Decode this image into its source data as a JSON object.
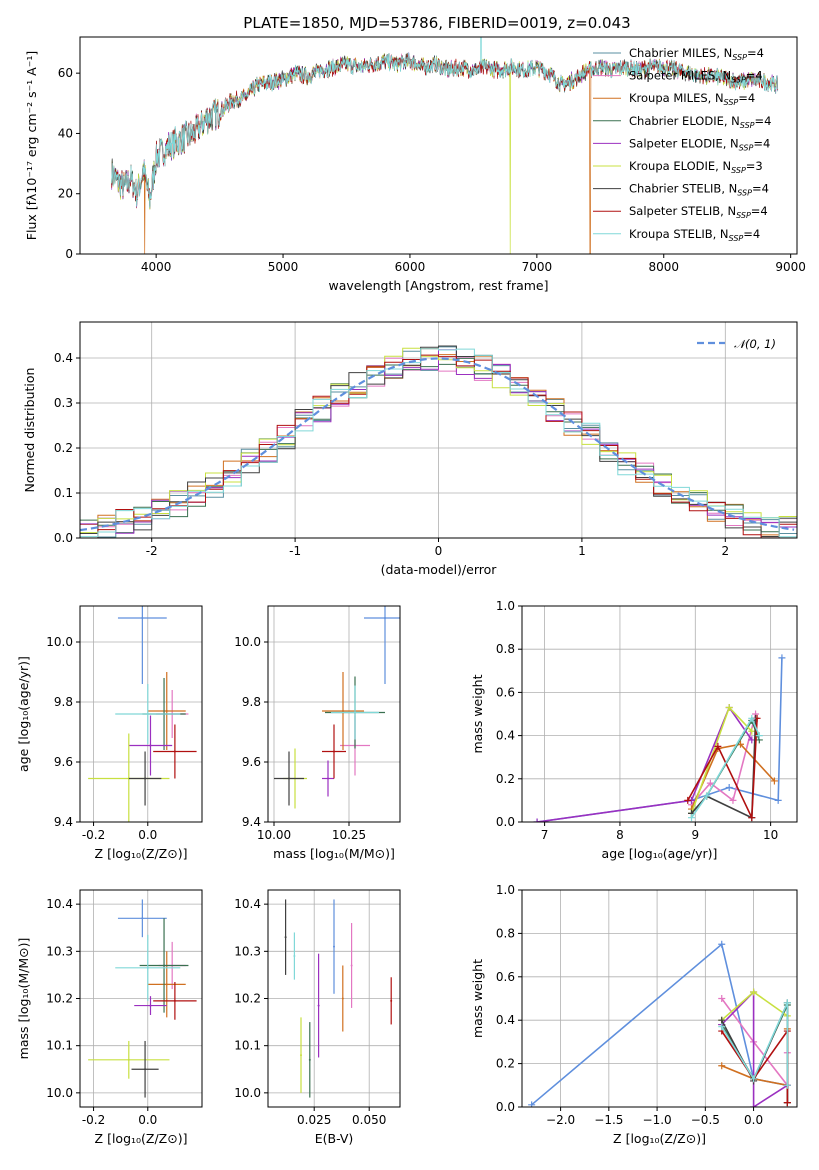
{
  "figure": {
    "title": "PLATE=1850, MJD=53786, FIBERID=0019, z=0.043"
  },
  "chart_data": [
    {
      "type": "line",
      "panel": "spectrum",
      "xlabel": "wavelength [Angstrom, rest frame]",
      "ylabel": "Flux [fλ10⁻¹⁷ erg cm⁻² s⁻¹ A⁻¹]",
      "xlim": [
        3400,
        9050
      ],
      "ylim": [
        0,
        72
      ],
      "xticks": [
        "4000",
        "5000",
        "6000",
        "7000",
        "8000",
        "9000"
      ],
      "yticks": [
        "0",
        "20",
        "40",
        "60"
      ],
      "grid": false,
      "legend_position": "top-right",
      "continuum": {
        "x": [
          3650,
          3700,
          3750,
          3800,
          3850,
          3900,
          3950,
          4000,
          4100,
          4200,
          4300,
          4400,
          4500,
          4600,
          4700,
          4800,
          4900,
          5000,
          5100,
          5200,
          5300,
          5400,
          5500,
          5600,
          5700,
          5800,
          5900,
          6000,
          6100,
          6200,
          6300,
          6400,
          6500,
          6600,
          6700,
          6800,
          6900,
          7000,
          7100,
          7200,
          7300,
          7400,
          7500,
          7600,
          7700,
          7800,
          7900,
          8000,
          8100,
          8200,
          8300,
          8400,
          8500,
          8600,
          8700,
          8800,
          8900
        ],
        "y": [
          27,
          24,
          22,
          25,
          20,
          28,
          18,
          32,
          36,
          38,
          40,
          45,
          47,
          51,
          52,
          56,
          57,
          58,
          60,
          59,
          61,
          62,
          63,
          62,
          63,
          64,
          63,
          64,
          62,
          63,
          61,
          62,
          61,
          62,
          61,
          62,
          61,
          62,
          60,
          56,
          58,
          61,
          62,
          61,
          62,
          61,
          62,
          62,
          61,
          60,
          59,
          59,
          58,
          57,
          58,
          57,
          56
        ]
      },
      "series": [
        {
          "name": "Chabrier MILES, N_SSP=4",
          "label_main": "Chabrier MILES, N",
          "label_sub": "SSP",
          "label_tail": "=4",
          "color": "#5a8fa0"
        },
        {
          "name": "Salpeter MILES, N_SSP=4",
          "label_main": "Salpeter MILES, N",
          "label_sub": "SSP",
          "label_tail": "=4",
          "color": "#e377c2"
        },
        {
          "name": "Kroupa MILES, N_SSP=4",
          "label_main": "Kroupa MILES, N",
          "label_sub": "SSP",
          "label_tail": "=4",
          "color": "#d07020"
        },
        {
          "name": "Chabrier ELODIE, N_SSP=4",
          "label_main": "Chabrier ELODIE, N",
          "label_sub": "SSP",
          "label_tail": "=4",
          "color": "#3a7050"
        },
        {
          "name": "Salpeter ELODIE, N_SSP=4",
          "label_main": "Salpeter ELODIE, N",
          "label_sub": "SSP",
          "label_tail": "=4",
          "color": "#9b30c0"
        },
        {
          "name": "Kroupa ELODIE, N_SSP=3",
          "label_main": "Kroupa ELODIE, N",
          "label_sub": "SSP",
          "label_tail": "=3",
          "color": "#c8e040"
        },
        {
          "name": "Chabrier STELIB, N_SSP=4",
          "label_main": "Chabrier STELIB, N",
          "label_sub": "SSP",
          "label_tail": "=4",
          "color": "#404040"
        },
        {
          "name": "Salpeter STELIB, N_SSP=4",
          "label_main": "Salpeter STELIB, N",
          "label_sub": "SSP",
          "label_tail": "=4",
          "color": "#b01010"
        },
        {
          "name": "Kroupa STELIB, N_SSP=4",
          "label_main": "Kroupa STELIB, N",
          "label_sub": "SSP",
          "label_tail": "=4",
          "color": "#80d8d8"
        }
      ]
    },
    {
      "type": "line",
      "panel": "residuals",
      "xlabel": "(data-model)/error",
      "ylabel": "Normed distribution",
      "xlim": [
        -2.5,
        2.5
      ],
      "ylim": [
        0,
        0.48
      ],
      "xticks": [
        -2,
        -1,
        0,
        1,
        2
      ],
      "yticks": [
        0.0,
        0.1,
        0.2,
        0.3,
        0.4
      ],
      "grid": true,
      "legend_position": "top-right",
      "reference": {
        "name": "𝒩(0, 1)",
        "color": "#5f8fdd",
        "mu": 0,
        "sigma": 1
      }
    },
    {
      "type": "scatter",
      "panel": "age-vs-Z",
      "xlabel": "Z [log₁₀(Z/Z⊙)]",
      "ylabel": "age  [log₁₀(age/yr)]",
      "xlim": [
        -0.25,
        0.2
      ],
      "ylim": [
        9.4,
        10.12
      ],
      "xticks": [
        -0.2,
        0.0
      ],
      "yticks": [
        9.4,
        9.6,
        9.8,
        10.0
      ],
      "grid": true,
      "points": [
        {
          "x": -0.02,
          "xerr": 0.09,
          "y": 10.08,
          "yerr": 0.22,
          "color": "#5f8fdd"
        },
        {
          "x": 0.09,
          "xerr": 0.06,
          "y": 9.76,
          "yerr": 0.08,
          "color": "#e377c2"
        },
        {
          "x": 0.07,
          "xerr": 0.07,
          "y": 9.77,
          "yerr": 0.13,
          "color": "#d07020"
        },
        {
          "x": 0.06,
          "xerr": 0.08,
          "y": 9.76,
          "yerr": 0.12,
          "color": "#3a7050"
        },
        {
          "x": 0.01,
          "xerr": 0.08,
          "y": 9.655,
          "yerr": 0.1,
          "color": "#9b30c0"
        },
        {
          "x": -0.07,
          "xerr": 0.15,
          "y": 9.545,
          "yerr": 0.15,
          "color": "#c8e040"
        },
        {
          "x": -0.01,
          "xerr": 0.06,
          "y": 9.545,
          "yerr": 0.09,
          "color": "#404040"
        },
        {
          "x": 0.1,
          "xerr": 0.08,
          "y": 9.635,
          "yerr": 0.09,
          "color": "#b01010"
        },
        {
          "x": 0.0,
          "xerr": 0.12,
          "y": 9.76,
          "yerr": 0.1,
          "color": "#80d8d8"
        }
      ]
    },
    {
      "type": "scatter",
      "panel": "age-vs-mass",
      "xlabel": "mass [log₁₀(M/M⊙)]",
      "ylabel": "",
      "xlim": [
        9.98,
        10.42
      ],
      "ylim": [
        9.4,
        10.12
      ],
      "xticks": [
        10.0,
        10.25
      ],
      "yticks": [
        9.4,
        9.6,
        9.8,
        10.0
      ],
      "grid": true,
      "points": [
        {
          "x": 10.37,
          "xerr": 0.07,
          "y": 10.08,
          "yerr": 0.22,
          "color": "#5f8fdd"
        },
        {
          "x": 10.27,
          "xerr": 0.05,
          "y": 9.655,
          "yerr": 0.1,
          "color": "#e377c2"
        },
        {
          "x": 10.23,
          "xerr": 0.07,
          "y": 9.77,
          "yerr": 0.13,
          "color": "#d07020"
        },
        {
          "x": 10.27,
          "xerr": 0.1,
          "y": 9.765,
          "yerr": 0.12,
          "color": "#3a7050"
        },
        {
          "x": 10.18,
          "xerr": 0.02,
          "y": 9.545,
          "yerr": 0.06,
          "color": "#9b30c0"
        },
        {
          "x": 10.07,
          "xerr": 0.04,
          "y": 9.545,
          "yerr": 0.1,
          "color": "#c8e040"
        },
        {
          "x": 10.05,
          "xerr": 0.05,
          "y": 9.545,
          "yerr": 0.09,
          "color": "#404040"
        },
        {
          "x": 10.2,
          "xerr": 0.04,
          "y": 9.635,
          "yerr": 0.09,
          "color": "#b01010"
        },
        {
          "x": 10.27,
          "xerr": 0.08,
          "y": 9.765,
          "yerr": 0.09,
          "color": "#80d8d8"
        }
      ]
    },
    {
      "type": "line",
      "panel": "weight-vs-age",
      "xlabel": "age  [log₁₀(age/yr)]",
      "ylabel": "mass weight",
      "xlim": [
        6.7,
        10.35
      ],
      "ylim": [
        0,
        1.0
      ],
      "xticks": [
        7,
        8,
        9,
        10
      ],
      "yticks": [
        0.0,
        0.2,
        0.4,
        0.6,
        0.8,
        1.0
      ],
      "grid": true,
      "series": [
        {
          "color": "#5f8fdd",
          "x": [
            6.9,
            8.95,
            9.45,
            10.1,
            10.15
          ],
          "y": [
            0.0,
            0.1,
            0.16,
            0.1,
            0.76
          ]
        },
        {
          "color": "#e377c2",
          "x": [
            8.95,
            9.2,
            9.5,
            9.8
          ],
          "y": [
            0.08,
            0.18,
            0.1,
            0.5
          ]
        },
        {
          "color": "#d07020",
          "x": [
            8.95,
            9.3,
            9.6,
            10.05
          ],
          "y": [
            0.06,
            0.34,
            0.36,
            0.19
          ]
        },
        {
          "color": "#3a7050",
          "x": [
            8.95,
            9.15,
            9.75,
            9.85
          ],
          "y": [
            0.04,
            0.12,
            0.47,
            0.38
          ]
        },
        {
          "color": "#9b30c0",
          "x": [
            6.9,
            8.95,
            9.45,
            9.75
          ],
          "y": [
            0.0,
            0.1,
            0.53,
            0.38
          ]
        },
        {
          "color": "#c8e040",
          "x": [
            8.95,
            9.45,
            9.75
          ],
          "y": [
            0.04,
            0.53,
            0.42
          ]
        },
        {
          "color": "#404040",
          "x": [
            8.95,
            9.15,
            9.75,
            9.8
          ],
          "y": [
            0.04,
            0.12,
            0.02,
            0.48
          ]
        },
        {
          "color": "#b01010",
          "x": [
            8.9,
            9.3,
            9.75,
            9.82
          ],
          "y": [
            0.1,
            0.35,
            0.02,
            0.48
          ]
        },
        {
          "color": "#80d8d8",
          "x": [
            8.95,
            9.15,
            9.75,
            9.85
          ],
          "y": [
            0.02,
            0.12,
            0.48,
            0.4
          ]
        }
      ]
    },
    {
      "type": "scatter",
      "panel": "mass-vs-Z",
      "xlabel": "Z [log₁₀(Z/Z⊙)]",
      "ylabel": "mass [log₁₀(M/M⊙)]",
      "xlim": [
        -0.25,
        0.2
      ],
      "ylim": [
        9.97,
        10.43
      ],
      "xticks": [
        -0.2,
        0.0
      ],
      "yticks": [
        10.0,
        10.1,
        10.2,
        10.3,
        10.4
      ],
      "grid": true,
      "points": [
        {
          "x": -0.02,
          "xerr": 0.09,
          "y": 10.37,
          "yerr": 0.04,
          "color": "#5f8fdd"
        },
        {
          "x": 0.09,
          "xerr": 0.05,
          "y": 10.27,
          "yerr": 0.05,
          "color": "#e377c2"
        },
        {
          "x": 0.07,
          "xerr": 0.07,
          "y": 10.23,
          "yerr": 0.07,
          "color": "#d07020"
        },
        {
          "x": 0.06,
          "xerr": 0.09,
          "y": 10.27,
          "yerr": 0.1,
          "color": "#3a7050"
        },
        {
          "x": 0.01,
          "xerr": 0.06,
          "y": 10.185,
          "yerr": 0.02,
          "color": "#9b30c0"
        },
        {
          "x": -0.07,
          "xerr": 0.15,
          "y": 10.07,
          "yerr": 0.04,
          "color": "#c8e040"
        },
        {
          "x": -0.01,
          "xerr": 0.05,
          "y": 10.05,
          "yerr": 0.06,
          "color": "#404040"
        },
        {
          "x": 0.1,
          "xerr": 0.08,
          "y": 10.195,
          "yerr": 0.04,
          "color": "#b01010"
        },
        {
          "x": 0.0,
          "xerr": 0.12,
          "y": 10.265,
          "yerr": 0.07,
          "color": "#80d8d8"
        }
      ]
    },
    {
      "type": "scatter",
      "panel": "mass-vs-EBV",
      "xlabel": "E(B-V)",
      "ylabel": "",
      "xlim": [
        0.004,
        0.064
      ],
      "ylim": [
        9.97,
        10.43
      ],
      "xticks": [
        0.025,
        0.05
      ],
      "yticks": [
        10.0,
        10.1,
        10.2,
        10.3,
        10.4
      ],
      "grid": true,
      "points": [
        {
          "x": 0.034,
          "xerr": 0,
          "y": 10.31,
          "yerr": 0.1,
          "color": "#5f8fdd"
        },
        {
          "x": 0.042,
          "xerr": 0,
          "y": 10.27,
          "yerr": 0.09,
          "color": "#e377c2"
        },
        {
          "x": 0.038,
          "xerr": 0,
          "y": 10.2,
          "yerr": 0.07,
          "color": "#d07020"
        },
        {
          "x": 0.023,
          "xerr": 0,
          "y": 10.07,
          "yerr": 0.08,
          "color": "#3a7050"
        },
        {
          "x": 0.027,
          "xerr": 0,
          "y": 10.185,
          "yerr": 0.11,
          "color": "#9b30c0"
        },
        {
          "x": 0.019,
          "xerr": 0,
          "y": 10.08,
          "yerr": 0.08,
          "color": "#c8e040"
        },
        {
          "x": 0.012,
          "xerr": 0,
          "y": 10.33,
          "yerr": 0.08,
          "color": "#404040"
        },
        {
          "x": 0.06,
          "xerr": 0,
          "y": 10.195,
          "yerr": 0.05,
          "color": "#b01010"
        },
        {
          "x": 0.016,
          "xerr": 0,
          "y": 10.29,
          "yerr": 0.05,
          "color": "#80d8d8"
        }
      ]
    },
    {
      "type": "line",
      "panel": "weight-vs-Z",
      "xlabel": "Z [log₁₀(Z/Z⊙)]",
      "ylabel": "mass weight",
      "xlim": [
        -2.4,
        0.45
      ],
      "ylim": [
        0,
        1.0
      ],
      "xticks": [
        -2.0,
        -1.5,
        -1.0,
        -0.5,
        0.0
      ],
      "xtick_labels": [
        "−2.0",
        "−1.5",
        "−1.0",
        "−0.5",
        "0.0"
      ],
      "yticks": [
        0.0,
        0.2,
        0.4,
        0.6,
        0.8,
        1.0
      ],
      "grid": true,
      "series": [
        {
          "color": "#5f8fdd",
          "x": [
            -2.3,
            -0.33,
            0.0,
            0.35
          ],
          "y": [
            0.01,
            0.75,
            0.13,
            0.1
          ]
        },
        {
          "color": "#e377c2",
          "x": [
            -0.33,
            0.0,
            0.35,
            0.35
          ],
          "y": [
            0.5,
            0.3,
            0.1,
            0.25
          ]
        },
        {
          "color": "#d07020",
          "x": [
            -0.33,
            0.0,
            0.35,
            0.35
          ],
          "y": [
            0.19,
            0.13,
            0.1,
            0.36
          ]
        },
        {
          "color": "#3a7050",
          "x": [
            -0.33,
            0.0,
            0.35,
            0.35
          ],
          "y": [
            0.38,
            0.13,
            0.47,
            0.02
          ]
        },
        {
          "color": "#9b30c0",
          "x": [
            -0.33,
            0.0,
            0.0,
            0.35
          ],
          "y": [
            0.38,
            0.53,
            0.0,
            0.1
          ]
        },
        {
          "color": "#c8e040",
          "x": [
            -0.33,
            0.0,
            0.35
          ],
          "y": [
            0.4,
            0.53,
            0.42
          ]
        },
        {
          "color": "#404040",
          "x": [
            -0.33,
            0.0,
            0.35,
            0.35
          ],
          "y": [
            0.4,
            0.12,
            0.48,
            0.02
          ]
        },
        {
          "color": "#b01010",
          "x": [
            -0.33,
            0.0,
            0.35,
            0.35
          ],
          "y": [
            0.35,
            0.13,
            0.35,
            0.02
          ]
        },
        {
          "color": "#80d8d8",
          "x": [
            -0.33,
            0.0,
            0.35,
            0.35
          ],
          "y": [
            0.37,
            0.13,
            0.48,
            0.1
          ]
        }
      ]
    }
  ]
}
